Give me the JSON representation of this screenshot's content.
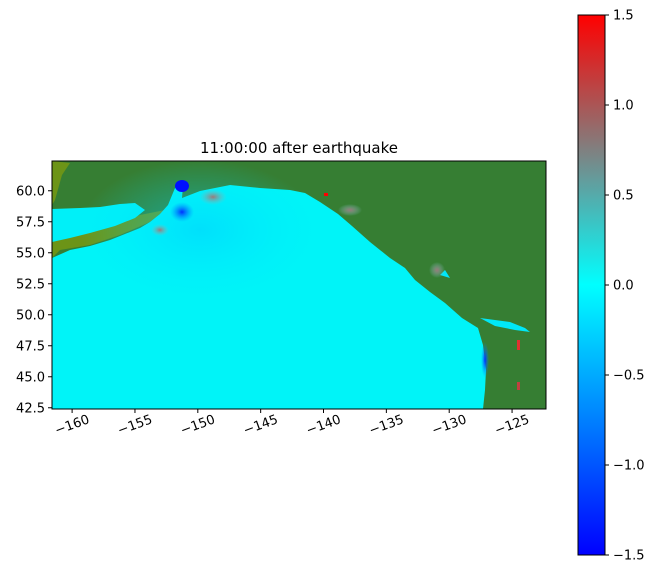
{
  "chart_data": {
    "type": "heatmap",
    "title": "11:00:00 after earthquake",
    "xlabel": "",
    "ylabel": "",
    "xlim": [
      -161.6,
      -122.3
    ],
    "ylim": [
      42.4,
      62.4
    ],
    "xticks": [
      -160,
      -155,
      -150,
      -145,
      -140,
      -135,
      -130,
      -125
    ],
    "xtick_labels": [
      "−160",
      "−155",
      "−150",
      "−145",
      "−140",
      "−135",
      "−130",
      "−125"
    ],
    "yticks": [
      42.5,
      45.0,
      47.5,
      50.0,
      52.5,
      55.0,
      57.5,
      60.0
    ],
    "ytick_labels": [
      "42.5",
      "45.0",
      "47.5",
      "50.0",
      "52.5",
      "55.0",
      "57.5",
      "60.0"
    ],
    "colorbar": {
      "range": [
        -1.5,
        1.5
      ],
      "ticks": [
        -1.5,
        -1.0,
        -0.5,
        0.0,
        0.5,
        1.0,
        1.5
      ],
      "tick_labels": [
        "−1.5",
        "−1.0",
        "−0.5",
        "0.0",
        "0.5",
        "1.0",
        "1.5"
      ],
      "colors": [
        {
          "value": -1.5,
          "color": "#0000ff"
        },
        {
          "value": -0.75,
          "color": "#0080ff"
        },
        {
          "value": 0.0,
          "color": "#00ffff"
        },
        {
          "value": 0.75,
          "color": "#808080"
        },
        {
          "value": 1.5,
          "color": "#ff0000"
        }
      ]
    },
    "land_color": "#367e33",
    "lowland_color": "#7a9a10",
    "ocean_color": "#00f4f8",
    "grid": false
  }
}
